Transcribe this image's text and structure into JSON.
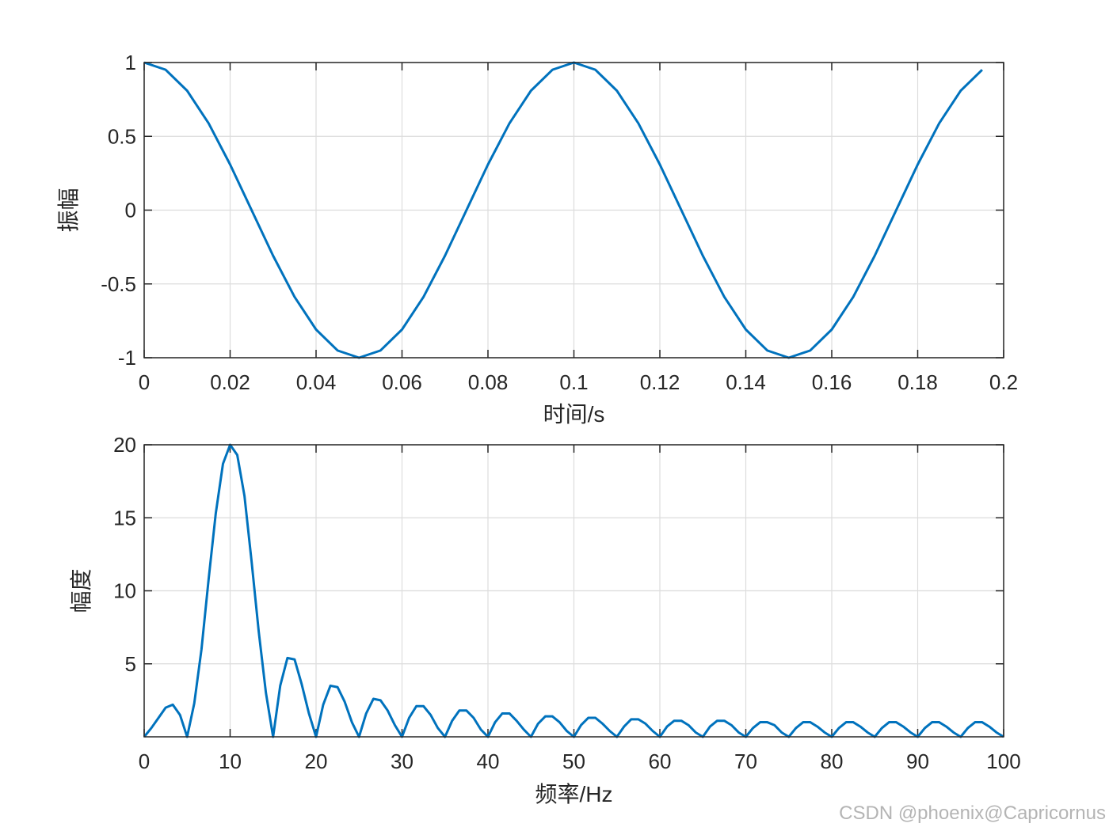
{
  "chart_data": [
    {
      "type": "line",
      "xlabel": "时间/s",
      "ylabel": "振幅",
      "xlim": [
        0,
        0.2
      ],
      "ylim": [
        -1,
        1
      ],
      "xticks": [
        0,
        0.02,
        0.04,
        0.06,
        0.08,
        0.1,
        0.12,
        0.14,
        0.16,
        0.18,
        0.2
      ],
      "xtick_labels": [
        "0",
        "0.02",
        "0.04",
        "0.06",
        "0.08",
        "0.1",
        "0.12",
        "0.14",
        "0.16",
        "0.18",
        "0.2"
      ],
      "yticks": [
        -1,
        -0.5,
        0,
        0.5,
        1
      ],
      "ytick_labels": [
        "-1",
        "-0.5",
        "0",
        "0.5",
        "1"
      ],
      "grid": true,
      "line_color": "#0072BD",
      "series": [
        {
          "x": [
            0,
            0.005,
            0.01,
            0.015,
            0.02,
            0.025,
            0.03,
            0.035,
            0.04,
            0.045,
            0.05,
            0.055,
            0.06,
            0.065,
            0.07,
            0.075,
            0.08,
            0.085,
            0.09,
            0.095,
            0.1,
            0.105,
            0.11,
            0.115,
            0.12,
            0.125,
            0.13,
            0.135,
            0.14,
            0.145,
            0.15,
            0.155,
            0.16,
            0.165,
            0.17,
            0.175,
            0.18,
            0.185,
            0.19,
            0.195
          ],
          "y": [
            1,
            0.951,
            0.809,
            0.588,
            0.309,
            0,
            -0.309,
            -0.588,
            -0.809,
            -0.951,
            -1,
            -0.951,
            -0.809,
            -0.588,
            -0.309,
            0,
            0.309,
            0.588,
            0.809,
            0.951,
            1,
            0.951,
            0.809,
            0.588,
            0.309,
            0,
            -0.309,
            -0.588,
            -0.809,
            -0.951,
            -1,
            -0.951,
            -0.809,
            -0.588,
            -0.309,
            0,
            0.309,
            0.588,
            0.809,
            0.951
          ]
        }
      ]
    },
    {
      "type": "line",
      "xlabel": "频率/Hz",
      "ylabel": "幅度",
      "xlim": [
        0,
        100
      ],
      "ylim": [
        0,
        20
      ],
      "xticks": [
        0,
        10,
        20,
        30,
        40,
        50,
        60,
        70,
        80,
        90,
        100
      ],
      "xtick_labels": [
        "0",
        "10",
        "20",
        "30",
        "40",
        "50",
        "60",
        "70",
        "80",
        "90",
        "100"
      ],
      "yticks": [
        5,
        10,
        15,
        20
      ],
      "ytick_labels": [
        "5",
        "10",
        "15",
        "20"
      ],
      "grid": true,
      "line_color": "#0072BD",
      "series": [
        {
          "x": [
            0,
            0.83,
            1.67,
            2.5,
            3.33,
            4.17,
            5,
            5.83,
            6.67,
            7.5,
            8.33,
            9.17,
            10,
            10.83,
            11.67,
            12.5,
            13.33,
            14.17,
            15,
            15.83,
            16.67,
            17.5,
            18.33,
            19.17,
            20,
            20.83,
            21.67,
            22.5,
            23.33,
            24.17,
            25,
            25.83,
            26.67,
            27.5,
            28.33,
            29.17,
            30,
            30.83,
            31.67,
            32.5,
            33.33,
            34.17,
            35,
            35.83,
            36.67,
            37.5,
            38.33,
            39.17,
            40,
            40.83,
            41.67,
            42.5,
            43.33,
            44.17,
            45,
            45.83,
            46.67,
            47.5,
            48.33,
            49.17,
            50,
            50.83,
            51.67,
            52.5,
            53.33,
            54.17,
            55,
            55.83,
            56.67,
            57.5,
            58.33,
            59.17,
            60,
            60.83,
            61.67,
            62.5,
            63.33,
            64.17,
            65,
            65.83,
            66.67,
            67.5,
            68.33,
            69.17,
            70,
            70.83,
            71.67,
            72.5,
            73.33,
            74.17,
            75,
            75.83,
            76.67,
            77.5,
            78.33,
            79.17,
            80,
            80.83,
            81.67,
            82.5,
            83.33,
            84.17,
            85,
            85.83,
            86.67,
            87.5,
            88.33,
            89.17,
            90,
            90.83,
            91.67,
            92.5,
            93.33,
            94.17,
            95,
            95.83,
            96.67,
            97.5,
            98.33,
            99.17,
            100
          ],
          "y": [
            0,
            0.6,
            1.3,
            2.0,
            2.2,
            1.5,
            0,
            2.3,
            6.0,
            10.8,
            15.3,
            18.7,
            20,
            19.3,
            16.5,
            12.0,
            7.2,
            3.0,
            0,
            3.5,
            5.4,
            5.3,
            3.6,
            1.6,
            0,
            2.2,
            3.5,
            3.4,
            2.4,
            1.0,
            0,
            1.6,
            2.6,
            2.5,
            1.8,
            0.8,
            0,
            1.3,
            2.1,
            2.1,
            1.5,
            0.6,
            0,
            1.1,
            1.8,
            1.8,
            1.3,
            0.5,
            0,
            1.0,
            1.6,
            1.6,
            1.1,
            0.5,
            0,
            0.9,
            1.4,
            1.4,
            1.0,
            0.4,
            0,
            0.8,
            1.3,
            1.3,
            0.9,
            0.4,
            0,
            0.7,
            1.2,
            1.2,
            0.9,
            0.4,
            0,
            0.7,
            1.1,
            1.1,
            0.8,
            0.3,
            0,
            0.7,
            1.1,
            1.1,
            0.8,
            0.3,
            0,
            0.6,
            1.0,
            1.0,
            0.8,
            0.3,
            0,
            0.6,
            1.0,
            1.0,
            0.7,
            0.3,
            0,
            0.6,
            1.0,
            1.0,
            0.7,
            0.3,
            0,
            0.6,
            1.0,
            1.0,
            0.7,
            0.3,
            0,
            0.6,
            1.0,
            1.0,
            0.7,
            0.3,
            0,
            0.6,
            1.0,
            1.0,
            0.7,
            0.3,
            0
          ]
        }
      ]
    }
  ],
  "watermark": "CSDN @phoenix@Capricornus"
}
